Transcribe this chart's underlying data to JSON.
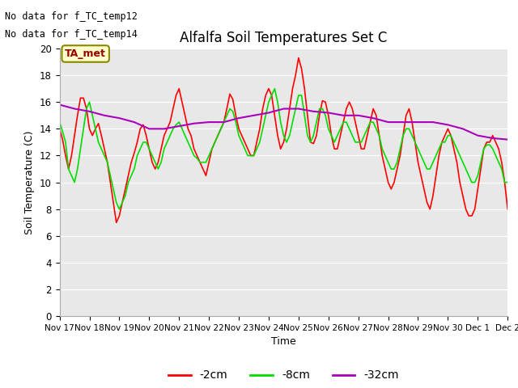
{
  "title": "Alfalfa Soil Temperatures Set C",
  "xlabel": "Time",
  "ylabel": "Soil Temperature (C)",
  "no_data_text": [
    "No data for f_TC_temp12",
    "No data for f_TC_temp14"
  ],
  "ta_met_label": "TA_met",
  "plot_bg_color": "#e8e8e8",
  "fig_bg_color": "#ffffff",
  "ylim": [
    0,
    20
  ],
  "yticks": [
    0,
    2,
    4,
    6,
    8,
    10,
    12,
    14,
    16,
    18,
    20
  ],
  "x_labels": [
    "Nov 17",
    "Nov 18",
    "Nov 19",
    "Nov 20",
    "Nov 21",
    "Nov 22",
    "Nov 23",
    "Nov 24",
    "Nov 25",
    "Nov 26",
    "Nov 27",
    "Nov 28",
    "Nov 29",
    "Nov 30",
    "Dec 1",
    "Dec 2"
  ],
  "series_2cm_color": "#ff0000",
  "series_8cm_color": "#00dd00",
  "series_32cm_color": "#aa00bb",
  "series_2cm_x": [
    0,
    0.1,
    0.2,
    0.3,
    0.4,
    0.5,
    0.6,
    0.7,
    0.8,
    0.9,
    1.0,
    1.1,
    1.2,
    1.3,
    1.4,
    1.5,
    1.6,
    1.7,
    1.8,
    1.9,
    2.0,
    2.1,
    2.2,
    2.3,
    2.4,
    2.5,
    2.6,
    2.7,
    2.8,
    2.9,
    3.0,
    3.1,
    3.2,
    3.3,
    3.4,
    3.5,
    3.6,
    3.7,
    3.8,
    3.9,
    4.0,
    4.1,
    4.2,
    4.3,
    4.4,
    4.5,
    4.6,
    4.7,
    4.8,
    4.9,
    5.0,
    5.1,
    5.2,
    5.3,
    5.4,
    5.5,
    5.6,
    5.7,
    5.8,
    5.9,
    6.0,
    6.1,
    6.2,
    6.3,
    6.4,
    6.5,
    6.6,
    6.7,
    6.8,
    6.9,
    7.0,
    7.1,
    7.2,
    7.3,
    7.4,
    7.5,
    7.6,
    7.7,
    7.8,
    7.9,
    8.0,
    8.1,
    8.2,
    8.3,
    8.4,
    8.5,
    8.6,
    8.7,
    8.8,
    8.9,
    9.0,
    9.1,
    9.2,
    9.3,
    9.4,
    9.5,
    9.6,
    9.7,
    9.8,
    9.9,
    10.0,
    10.1,
    10.2,
    10.3,
    10.4,
    10.5,
    10.6,
    10.7,
    10.8,
    10.9,
    11.0,
    11.1,
    11.2,
    11.3,
    11.4,
    11.5,
    11.6,
    11.7,
    11.8,
    11.9,
    12.0,
    12.1,
    12.2,
    12.3,
    12.4,
    12.5,
    12.6,
    12.7,
    12.8,
    12.9,
    13.0,
    13.1,
    13.2,
    13.3,
    13.4,
    13.5,
    13.6,
    13.7,
    13.8,
    13.9,
    14.0,
    14.1,
    14.2,
    14.3,
    14.4,
    14.5,
    14.6,
    14.7,
    14.8,
    14.9,
    15.0
  ],
  "series_2cm_y": [
    14.0,
    13.2,
    12.0,
    11.0,
    12.0,
    13.5,
    15.0,
    16.3,
    16.3,
    15.5,
    14.0,
    13.5,
    14.0,
    14.4,
    13.5,
    12.5,
    11.5,
    10.0,
    8.5,
    7.0,
    7.5,
    8.5,
    9.5,
    10.5,
    11.5,
    12.2,
    13.0,
    14.0,
    14.3,
    13.5,
    12.5,
    11.5,
    11.0,
    11.5,
    12.5,
    13.5,
    14.0,
    14.5,
    15.5,
    16.5,
    17.0,
    16.0,
    15.0,
    14.0,
    13.5,
    12.5,
    12.0,
    11.5,
    11.0,
    10.5,
    11.5,
    12.5,
    13.0,
    13.5,
    14.0,
    14.5,
    15.5,
    16.6,
    16.2,
    15.0,
    14.0,
    13.5,
    13.0,
    12.5,
    12.0,
    12.0,
    13.0,
    14.0,
    15.5,
    16.5,
    17.0,
    16.5,
    15.0,
    13.5,
    12.5,
    13.0,
    14.0,
    15.5,
    17.0,
    18.0,
    19.3,
    18.5,
    17.0,
    15.0,
    13.0,
    12.9,
    13.5,
    15.0,
    16.1,
    16.0,
    15.0,
    13.5,
    12.5,
    12.5,
    13.5,
    14.5,
    15.5,
    16.0,
    15.5,
    14.5,
    13.5,
    12.5,
    12.5,
    13.5,
    14.5,
    15.5,
    15.0,
    13.5,
    12.0,
    11.0,
    10.0,
    9.5,
    10.0,
    11.0,
    12.0,
    13.5,
    15.0,
    15.5,
    14.5,
    13.0,
    11.5,
    10.5,
    9.5,
    8.5,
    8.0,
    9.0,
    10.5,
    12.0,
    13.0,
    13.5,
    14.0,
    13.5,
    12.5,
    11.5,
    10.0,
    9.0,
    8.0,
    7.5,
    7.5,
    8.0,
    9.5,
    11.0,
    12.5,
    13.0,
    13.0,
    13.5,
    13.0,
    12.5,
    11.5,
    10.0,
    8.0
  ],
  "series_8cm_x": [
    0,
    0.1,
    0.2,
    0.3,
    0.4,
    0.5,
    0.6,
    0.7,
    0.8,
    0.9,
    1.0,
    1.1,
    1.2,
    1.3,
    1.4,
    1.5,
    1.6,
    1.7,
    1.8,
    1.9,
    2.0,
    2.1,
    2.2,
    2.3,
    2.4,
    2.5,
    2.6,
    2.7,
    2.8,
    2.9,
    3.0,
    3.1,
    3.2,
    3.3,
    3.4,
    3.5,
    3.6,
    3.7,
    3.8,
    3.9,
    4.0,
    4.1,
    4.2,
    4.3,
    4.4,
    4.5,
    4.6,
    4.7,
    4.8,
    4.9,
    5.0,
    5.1,
    5.2,
    5.3,
    5.4,
    5.5,
    5.6,
    5.7,
    5.8,
    5.9,
    6.0,
    6.1,
    6.2,
    6.3,
    6.4,
    6.5,
    6.6,
    6.7,
    6.8,
    6.9,
    7.0,
    7.1,
    7.2,
    7.3,
    7.4,
    7.5,
    7.6,
    7.7,
    7.8,
    7.9,
    8.0,
    8.1,
    8.2,
    8.3,
    8.4,
    8.5,
    8.6,
    8.7,
    8.8,
    8.9,
    9.0,
    9.1,
    9.2,
    9.3,
    9.4,
    9.5,
    9.6,
    9.7,
    9.8,
    9.9,
    10.0,
    10.1,
    10.2,
    10.3,
    10.4,
    10.5,
    10.6,
    10.7,
    10.8,
    10.9,
    11.0,
    11.1,
    11.2,
    11.3,
    11.4,
    11.5,
    11.6,
    11.7,
    11.8,
    11.9,
    12.0,
    12.1,
    12.2,
    12.3,
    12.4,
    12.5,
    12.6,
    12.7,
    12.8,
    12.9,
    13.0,
    13.1,
    13.2,
    13.3,
    13.4,
    13.5,
    13.6,
    13.7,
    13.8,
    13.9,
    14.0,
    14.1,
    14.2,
    14.3,
    14.4,
    14.5,
    14.6,
    14.7,
    14.8,
    14.9,
    15.0
  ],
  "series_8cm_y": [
    14.5,
    13.8,
    13.0,
    11.0,
    10.5,
    10.0,
    11.0,
    12.5,
    14.0,
    15.5,
    16.0,
    15.0,
    14.0,
    13.0,
    12.5,
    12.0,
    11.5,
    10.5,
    9.5,
    8.5,
    8.0,
    8.5,
    9.0,
    10.0,
    10.5,
    11.0,
    12.0,
    12.5,
    13.0,
    13.0,
    12.5,
    12.0,
    11.5,
    11.0,
    11.5,
    12.5,
    13.0,
    13.5,
    14.0,
    14.3,
    14.5,
    14.0,
    13.5,
    13.0,
    12.5,
    12.0,
    11.8,
    11.5,
    11.5,
    11.5,
    12.0,
    12.5,
    13.0,
    13.5,
    14.0,
    14.5,
    15.0,
    15.5,
    15.3,
    14.5,
    13.5,
    13.0,
    12.5,
    12.0,
    12.0,
    12.0,
    12.5,
    13.0,
    14.0,
    15.0,
    16.0,
    16.5,
    17.0,
    16.0,
    14.5,
    13.5,
    13.0,
    13.5,
    14.5,
    15.5,
    16.5,
    16.5,
    15.0,
    13.5,
    13.0,
    13.5,
    14.5,
    15.5,
    15.5,
    15.0,
    14.0,
    13.5,
    13.0,
    13.5,
    14.0,
    14.5,
    14.5,
    14.0,
    13.5,
    13.0,
    13.0,
    13.0,
    13.5,
    14.0,
    14.5,
    14.5,
    14.0,
    13.5,
    12.5,
    12.0,
    11.5,
    11.0,
    11.0,
    11.5,
    12.5,
    13.5,
    14.0,
    14.0,
    13.5,
    13.0,
    12.5,
    12.0,
    11.5,
    11.0,
    11.0,
    11.5,
    12.0,
    12.5,
    13.0,
    13.0,
    13.5,
    13.5,
    13.0,
    12.5,
    12.0,
    11.5,
    11.0,
    10.5,
    10.0,
    10.0,
    10.5,
    11.5,
    12.5,
    12.8,
    12.8,
    12.5,
    12.0,
    11.5,
    11.0,
    10.0,
    10.0
  ],
  "series_32cm_x": [
    0,
    0.5,
    1.0,
    1.5,
    2.0,
    2.5,
    3.0,
    3.5,
    4.0,
    4.5,
    5.0,
    5.5,
    6.0,
    6.5,
    7.0,
    7.5,
    8.0,
    8.5,
    9.0,
    9.5,
    10.0,
    10.5,
    11.0,
    11.5,
    12.0,
    12.5,
    13.0,
    13.5,
    14.0,
    14.5,
    15.0
  ],
  "series_32cm_y": [
    15.8,
    15.5,
    15.3,
    15.0,
    14.8,
    14.5,
    14.0,
    14.0,
    14.2,
    14.4,
    14.5,
    14.5,
    14.8,
    15.0,
    15.2,
    15.5,
    15.5,
    15.3,
    15.2,
    15.0,
    15.0,
    14.8,
    14.5,
    14.5,
    14.5,
    14.5,
    14.3,
    14.0,
    13.5,
    13.3,
    13.2
  ]
}
